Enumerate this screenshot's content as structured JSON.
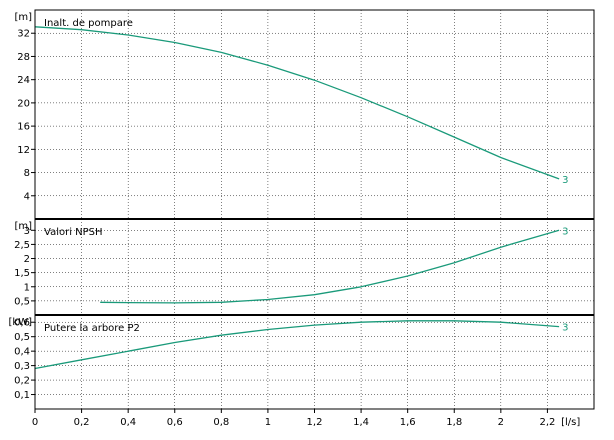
{
  "x_unit": "[l/s]",
  "x_ticks": [
    "0",
    "0,2",
    "0,4",
    "0,6",
    "0,8",
    "1",
    "1,2",
    "1,4",
    "1,6",
    "1,8",
    "2",
    "2,2"
  ],
  "curve_color": "#1a9a7a",
  "chart_data": [
    {
      "type": "line",
      "title": "Inalt. de pompare",
      "unit": "[m]",
      "y_ticks": [
        "4",
        "8",
        "12",
        "16",
        "20",
        "24",
        "28",
        "32"
      ],
      "ylim": [
        0,
        36
      ],
      "xlim": [
        0,
        2.4
      ],
      "series": [
        {
          "label": "3",
          "x": [
            0,
            0.2,
            0.4,
            0.6,
            0.8,
            1.0,
            1.2,
            1.4,
            1.6,
            1.8,
            2.0,
            2.25
          ],
          "y": [
            33.1,
            32.6,
            31.7,
            30.4,
            28.7,
            26.5,
            23.9,
            20.9,
            17.6,
            14.1,
            10.6,
            6.9
          ]
        }
      ]
    },
    {
      "type": "line",
      "title": "Valori NPSH",
      "unit": "[m]",
      "y_ticks": [
        "0,5",
        "1",
        "1,5",
        "2",
        "2,5",
        "3"
      ],
      "ylim": [
        0,
        3.4
      ],
      "xlim": [
        0,
        2.4
      ],
      "series": [
        {
          "label": "3",
          "x": [
            0.28,
            0.4,
            0.6,
            0.8,
            1.0,
            1.2,
            1.4,
            1.6,
            1.8,
            2.0,
            2.25
          ],
          "y": [
            0.45,
            0.44,
            0.43,
            0.45,
            0.55,
            0.72,
            1.0,
            1.38,
            1.85,
            2.4,
            3.0
          ]
        }
      ]
    },
    {
      "type": "line",
      "title": "Putere la arbore P2",
      "unit": "[kW]",
      "y_ticks": [
        "0,1",
        "0,2",
        "0,3",
        "0,4",
        "0,5",
        "0,6"
      ],
      "ylim": [
        0,
        0.65
      ],
      "xlim": [
        0,
        2.4
      ],
      "series": [
        {
          "label": "3",
          "x": [
            0,
            0.2,
            0.4,
            0.6,
            0.8,
            1.0,
            1.2,
            1.4,
            1.6,
            1.8,
            2.0,
            2.25
          ],
          "y": [
            0.28,
            0.34,
            0.4,
            0.46,
            0.51,
            0.55,
            0.58,
            0.6,
            0.61,
            0.61,
            0.6,
            0.57
          ]
        }
      ]
    }
  ]
}
